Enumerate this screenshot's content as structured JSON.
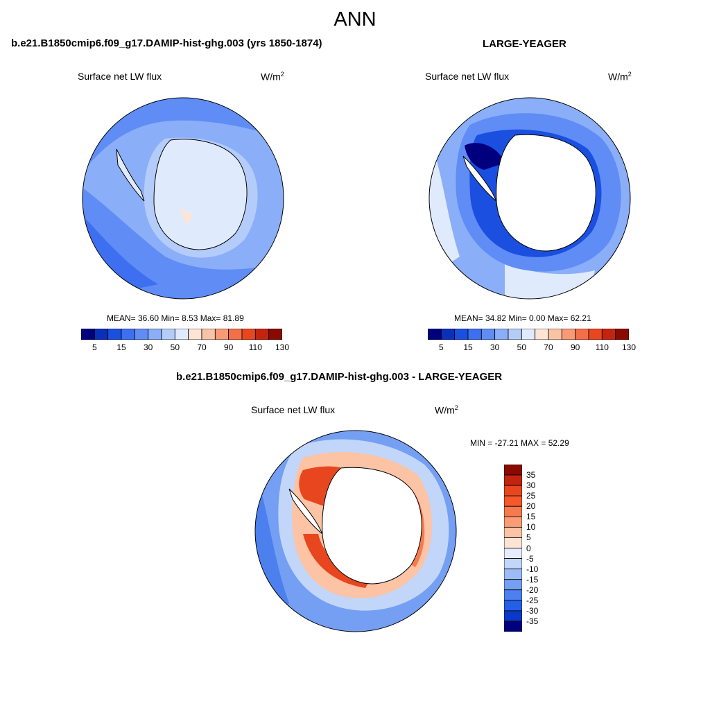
{
  "main_title": "ANN",
  "panels": [
    {
      "title": "b.e21.B1850cmip6.f09_g17.DAMIP-hist-ghg.003 (yrs 1850-1874)",
      "variable": "Surface net LW flux",
      "units": "W/m",
      "units_exponent": "2",
      "stats": "MEAN=  36.60  Min=   8.53  Max=  81.89",
      "colorbar_ticks": [
        "5",
        "15",
        "30",
        "50",
        "70",
        "90",
        "110",
        "130"
      ]
    },
    {
      "title": "LARGE-YEAGER",
      "variable": "Surface net LW flux",
      "units": "W/m",
      "units_exponent": "2",
      "stats": "MEAN=  34.82  Min=   0.00  Max=  62.21",
      "colorbar_ticks": [
        "5",
        "15",
        "30",
        "50",
        "70",
        "90",
        "110",
        "130"
      ]
    }
  ],
  "diff_panel": {
    "title": "b.e21.B1850cmip6.f09_g17.DAMIP-hist-ghg.003 - LARGE-YEAGER",
    "variable": "Surface net LW flux",
    "units": "W/m",
    "units_exponent": "2",
    "stats": "MIN = -27.21 MAX =  52.29",
    "colorbar_ticks": [
      "35",
      "30",
      "25",
      "20",
      "15",
      "10",
      "5",
      "0",
      "-5",
      "-10",
      "-15",
      "-20",
      "-25",
      "-30",
      "-35"
    ]
  },
  "colors": {
    "abs_scale": [
      "#00007f",
      "#0a2fb8",
      "#1a4fe0",
      "#3d6ff0",
      "#5f8cf5",
      "#8aaef8",
      "#b4ccfa",
      "#e0eafd",
      "#fde4d4",
      "#fbc3a6",
      "#f79a75",
      "#f26f48",
      "#e8461f",
      "#c4240d",
      "#8b0a00"
    ],
    "diff_scale": [
      "#8b0a00",
      "#c4240d",
      "#e8461f",
      "#f4582b",
      "#f77a4e",
      "#fa9d77",
      "#fcc3a5",
      "#fee4d4",
      "#e6eefd",
      "#c2d6fa",
      "#9cbbf7",
      "#749ff3",
      "#4c80ef",
      "#245fe8",
      "#0a38c8",
      "#00007f"
    ],
    "land": "#ffffff",
    "coast": "#000000"
  }
}
